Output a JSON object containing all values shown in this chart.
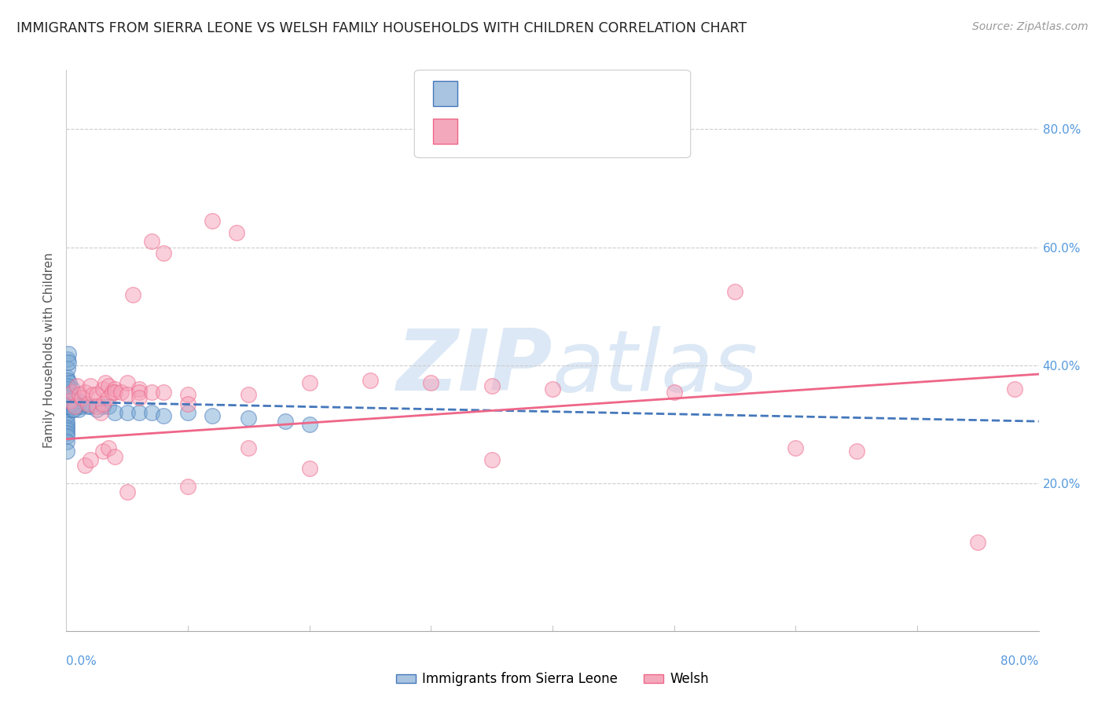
{
  "title": "IMMIGRANTS FROM SIERRA LEONE VS WELSH FAMILY HOUSEHOLDS WITH CHILDREN CORRELATION CHART",
  "source": "Source: ZipAtlas.com",
  "ylabel": "Family Households with Children",
  "blue_series_name": "Immigrants from Sierra Leone",
  "pink_series_name": "Welsh",
  "legend_box_color_blue": "#a8c4e0",
  "legend_box_color_pink": "#f4a8bc",
  "blue_scatter_color": "#7baad4",
  "pink_scatter_color": "#f4a0b8",
  "blue_line_color": "#4477bb",
  "pink_line_color": "#ee6688",
  "blue_scatter_edge": "#4477bb",
  "pink_scatter_edge": "#ee6688",
  "grid_color": "#cccccc",
  "background_color": "#ffffff",
  "watermark_color": "#dce8f5",
  "ytick_color": "#5599dd",
  "xtick_color": "#5599dd",
  "blue_dots_x": [
    0.05,
    0.05,
    0.05,
    0.05,
    0.05,
    0.05,
    0.05,
    0.05,
    0.05,
    0.05,
    0.05,
    0.05,
    0.05,
    0.05,
    0.05,
    0.1,
    0.1,
    0.1,
    0.1,
    0.1,
    0.15,
    0.15,
    0.2,
    0.2,
    0.2,
    0.3,
    0.3,
    0.4,
    0.5,
    0.5,
    0.5,
    0.6,
    0.7,
    0.8,
    0.9,
    1.0,
    1.0,
    1.2,
    1.5,
    1.8,
    2.0,
    2.5,
    3.0,
    3.5,
    4.0,
    5.0,
    6.0,
    7.0,
    8.0,
    10.0,
    12.0,
    15.0,
    18.0,
    20.0,
    0.05,
    0.08,
    0.08,
    0.08,
    0.08,
    0.12,
    0.12,
    0.15,
    0.18,
    0.22,
    0.25,
    0.35,
    0.45,
    0.6
  ],
  "blue_dots_y": [
    38.0,
    36.5,
    35.0,
    34.0,
    33.0,
    32.5,
    31.5,
    30.5,
    30.0,
    29.5,
    29.0,
    28.5,
    28.0,
    27.0,
    25.5,
    41.0,
    39.5,
    37.5,
    35.5,
    33.5,
    42.0,
    34.0,
    40.5,
    36.5,
    34.5,
    35.5,
    34.0,
    34.5,
    36.0,
    34.0,
    32.5,
    33.5,
    34.0,
    33.5,
    33.0,
    34.0,
    32.5,
    33.0,
    33.5,
    33.0,
    33.0,
    32.5,
    33.0,
    33.0,
    32.0,
    32.0,
    32.0,
    32.0,
    31.5,
    32.0,
    31.5,
    31.0,
    30.5,
    30.0,
    34.5,
    36.5,
    35.5,
    34.5,
    33.0,
    36.0,
    34.5,
    35.0,
    34.0,
    37.0,
    35.0,
    34.0,
    33.5,
    32.5
  ],
  "pink_dots_x": [
    0.3,
    0.5,
    0.7,
    0.9,
    1.1,
    1.3,
    1.5,
    1.5,
    1.8,
    2.0,
    2.0,
    2.2,
    2.5,
    2.5,
    2.8,
    3.0,
    3.0,
    3.0,
    3.2,
    3.5,
    3.5,
    3.5,
    3.8,
    4.0,
    4.0,
    4.0,
    4.5,
    5.0,
    5.0,
    5.0,
    5.5,
    6.0,
    6.0,
    6.0,
    7.0,
    7.0,
    8.0,
    8.0,
    10.0,
    10.0,
    12.0,
    14.0,
    15.0,
    15.0,
    20.0,
    25.0,
    30.0,
    35.0,
    40.0,
    50.0,
    55.0,
    60.0,
    65.0,
    75.0,
    78.0,
    35.0,
    20.0,
    10.0
  ],
  "pink_dots_y": [
    34.0,
    35.5,
    33.0,
    36.5,
    35.0,
    34.5,
    35.5,
    23.0,
    33.5,
    36.5,
    24.0,
    35.0,
    35.0,
    33.0,
    32.0,
    36.0,
    33.5,
    25.5,
    37.0,
    36.5,
    34.5,
    26.0,
    35.5,
    36.0,
    35.5,
    24.5,
    35.5,
    37.0,
    35.0,
    18.5,
    52.0,
    36.0,
    35.5,
    34.5,
    35.5,
    61.0,
    35.5,
    59.0,
    35.0,
    33.5,
    64.5,
    62.5,
    35.0,
    26.0,
    37.0,
    37.5,
    37.0,
    36.5,
    36.0,
    35.5,
    52.5,
    26.0,
    25.5,
    10.0,
    36.0,
    24.0,
    22.5,
    19.5
  ],
  "blue_line_x": [
    0.0,
    80.0
  ],
  "blue_line_y": [
    33.8,
    30.5
  ],
  "pink_line_x": [
    0.0,
    80.0
  ],
  "pink_line_y": [
    27.5,
    38.5
  ],
  "xlim": [
    0.0,
    80.0
  ],
  "ylim": [
    -5.0,
    90.0
  ],
  "ytick_vals": [
    20.0,
    40.0,
    60.0,
    80.0
  ],
  "ytick_labels": [
    "20.0%",
    "40.0%",
    "60.0%",
    "80.0%"
  ],
  "xtick_left_label": "0.0%",
  "xtick_right_label": "80.0%"
}
